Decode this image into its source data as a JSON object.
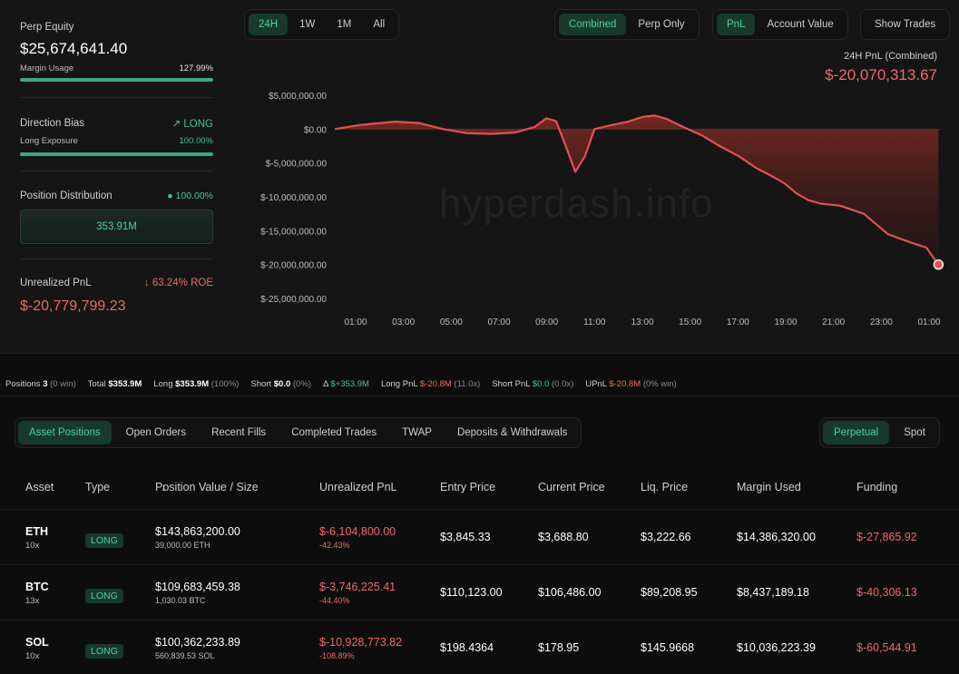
{
  "equity": {
    "label": "Perp Equity",
    "value": "$25,674,641.40",
    "margin_label": "Margin Usage",
    "margin_value": "127.99%",
    "margin_fraction": 1.0
  },
  "bias": {
    "label": "Direction Bias",
    "value": "LONG",
    "exposure_label": "Long Exposure",
    "exposure_value": "100.00%",
    "exposure_fraction": 1.0
  },
  "distribution": {
    "label": "Position Distribution",
    "value": "100.00%",
    "box_value": "353.91M"
  },
  "unrealized": {
    "label": "Unrealized PnL",
    "roe": "63.24% ROE",
    "value": "$-20,779,799.23"
  },
  "range_tabs": [
    "24H",
    "1W",
    "1M",
    "All"
  ],
  "view_tabs": [
    "Combined",
    "Perp Only"
  ],
  "metric_tabs": [
    "PnL",
    "Account Value"
  ],
  "show_trades": "Show Trades",
  "chart_header": {
    "label": "24H PnL (Combined)",
    "value": "$-20,070,313.67"
  },
  "watermark": "hyperdash.info",
  "chart_data": {
    "type": "area",
    "title": "24H PnL (Combined)",
    "y_ticks": [
      "$5,000,000.00",
      "$0.00",
      "$-5,000,000.00",
      "$-10,000,000.00",
      "$-15,000,000.00",
      "$-20,000,000.00",
      "$-25,000,000.00"
    ],
    "ylim": [
      -25000000,
      5000000
    ],
    "x_ticks": [
      "01:00",
      "03:00",
      "05:00",
      "07:00",
      "09:00",
      "11:00",
      "13:00",
      "15:00",
      "17:00",
      "19:00",
      "21:00",
      "23:00",
      "01:00"
    ],
    "xlim": [
      0,
      25.2
    ],
    "series": [
      {
        "color": "#e05252",
        "x": [
          0,
          1,
          2.5,
          3.5,
          4.5,
          5.5,
          6.5,
          7.5,
          8.3,
          8.8,
          9.2,
          9.6,
          10,
          10.4,
          10.8,
          11.5,
          12.2,
          12.8,
          13.3,
          13.8,
          14.5,
          15.3,
          16,
          16.8,
          17.5,
          18.2,
          18.7,
          19.2,
          19.7,
          20.2,
          21,
          22,
          23,
          24,
          24.6,
          25.1
        ],
        "y": [
          0,
          600000,
          1100000,
          900000,
          0,
          -600000,
          -700000,
          -500000,
          300000,
          1600000,
          1200000,
          -2500000,
          -6300000,
          -4000000,
          0,
          600000,
          1100000,
          1800000,
          2000000,
          1500000,
          300000,
          -1000000,
          -2500000,
          -4000000,
          -5700000,
          -7000000,
          -8000000,
          -9500000,
          -10500000,
          -11000000,
          -11300000,
          -12500000,
          -15500000,
          -16800000,
          -17500000,
          -20000000
        ]
      }
    ]
  },
  "summary": {
    "positions_label": "Positions",
    "positions_value": "3",
    "positions_note": "(0 win)",
    "total_label": "Total",
    "total_value": "$353.9M",
    "long_label": "Long",
    "long_value": "$353.9M",
    "long_note": "(100%)",
    "short_label": "Short",
    "short_value": "$0.0",
    "short_note": "(0%)",
    "delta_label": "Δ",
    "delta_value": "$+353.9M",
    "longpnl_label": "Long PnL",
    "longpnl_value": "$-20.8M",
    "longpnl_note": "(11.0x)",
    "shortpnl_label": "Short PnL",
    "shortpnl_value": "$0.0",
    "shortpnl_note": "(0.0x)",
    "upnl_label": "UPnL",
    "upnl_value": "$-20.8M",
    "upnl_note": "(0% win)"
  },
  "table_tabs": [
    "Asset Positions",
    "Open Orders",
    "Recent Fills",
    "Completed Trades",
    "TWAP",
    "Deposits & Withdrawals"
  ],
  "market_tabs": [
    "Perpetual",
    "Spot"
  ],
  "columns": [
    "Asset",
    "Type",
    "Position Value / Size",
    "Unrealized PnL",
    "Entry Price",
    "Current Price",
    "Liq. Price",
    "Margin Used",
    "Funding"
  ],
  "sort_arrow": "↓",
  "positions": [
    {
      "asset": "ETH",
      "leverage": "10x",
      "type": "LONG",
      "value": "$143,863,200.00",
      "size": "39,000.00 ETH",
      "pnl": "$-6,104,800.00",
      "pnl_pct": "-42.43%",
      "entry": "$3,845.33",
      "current": "$3,688.80",
      "liq": "$3,222.66",
      "margin": "$14,386,320.00",
      "funding": "$-27,865.92"
    },
    {
      "asset": "BTC",
      "leverage": "13x",
      "type": "LONG",
      "value": "$109,683,459.38",
      "size": "1,030.03 BTC",
      "pnl": "$-3,746,225.41",
      "pnl_pct": "-44.40%",
      "entry": "$110,123.00",
      "current": "$106,486.00",
      "liq": "$89,208.95",
      "margin": "$8,437,189.18",
      "funding": "$-40,306.13"
    },
    {
      "asset": "SOL",
      "leverage": "10x",
      "type": "LONG",
      "value": "$100,362,233.89",
      "size": "560,839.53 SOL",
      "pnl": "$-10,928,773.82",
      "pnl_pct": "-108.89%",
      "entry": "$198.4364",
      "current": "$178.95",
      "liq": "$145.9668",
      "margin": "$10,036,223.39",
      "funding": "$-60,544.91"
    }
  ]
}
